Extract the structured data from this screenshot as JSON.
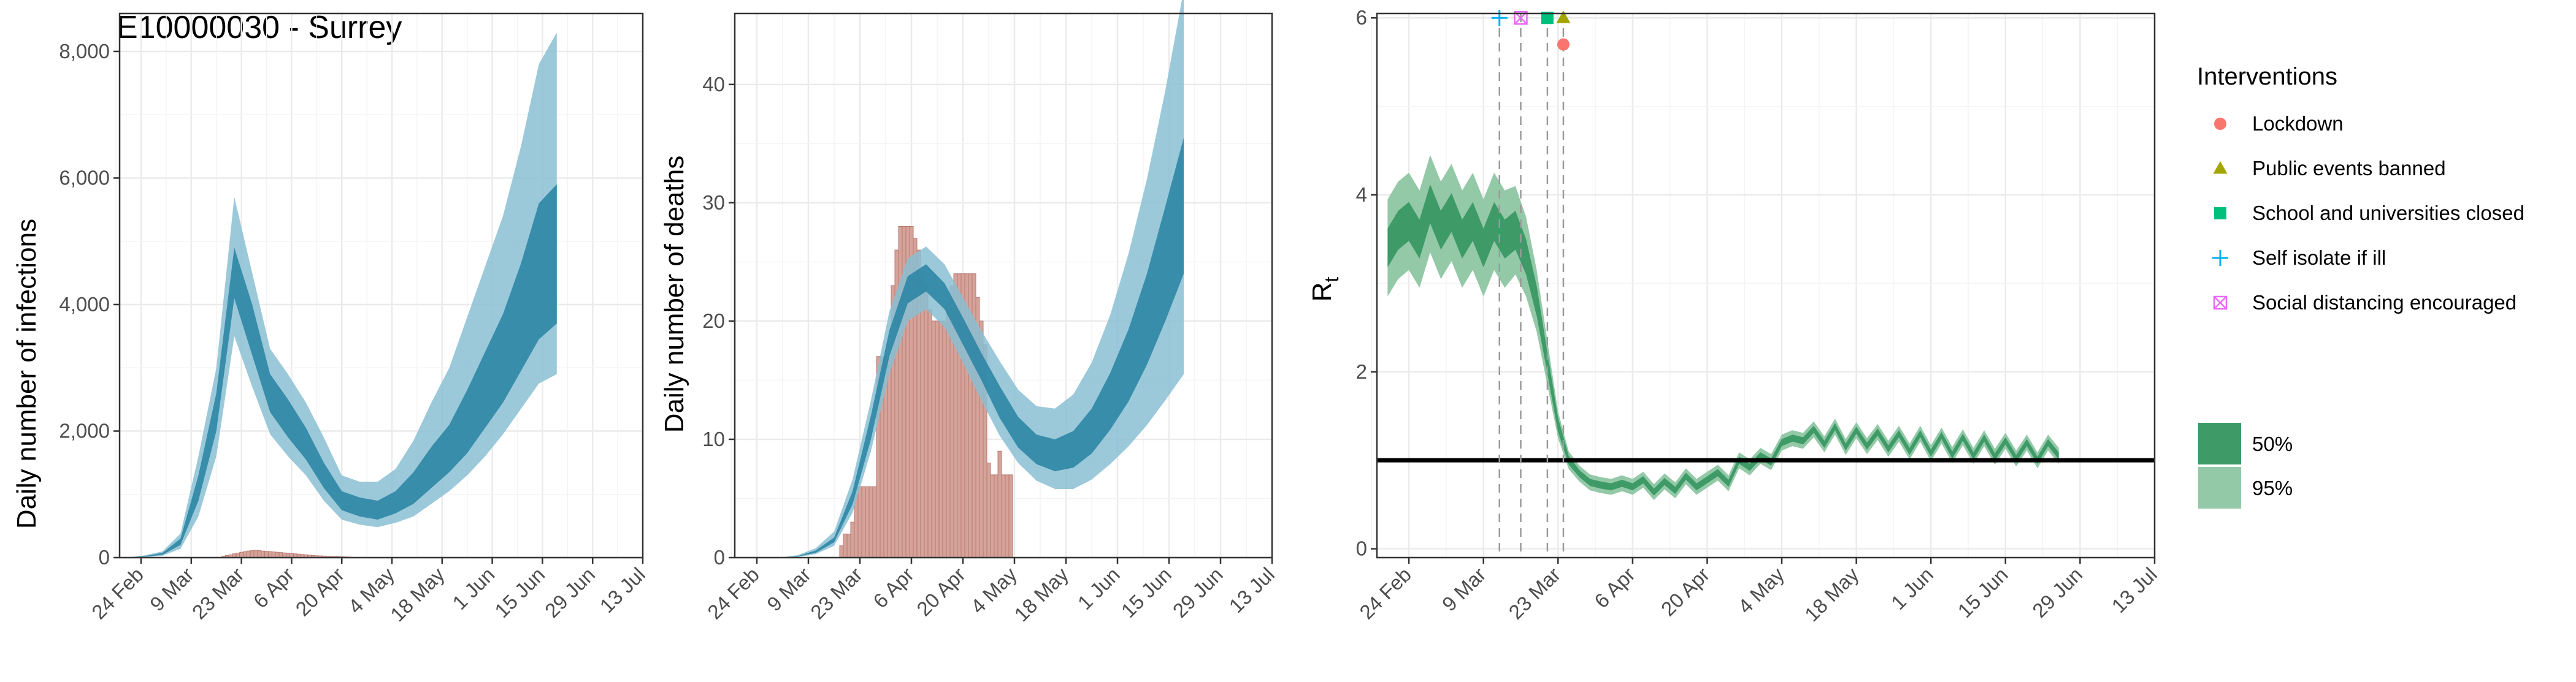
{
  "colors": {
    "infections_50": "#2e86a4",
    "infections_95": "#8ac0d3",
    "observed_bars": "#d5a39a",
    "observed_bar_edge": "#b77a70",
    "rt_50": "#3e9a67",
    "rt_95": "#94c9a8",
    "lockdown": "#f8766d",
    "public_events": "#a3a500",
    "school": "#00bf7d",
    "self_isolate": "#00b0f6",
    "social_distancing": "#e76bf3",
    "grid": "#ebebeb",
    "panel_border": "#333333"
  },
  "chart_data": [
    {
      "type": "area",
      "title": "E10000030 - Surrey",
      "xlabel": "",
      "ylabel": "Daily number of infections",
      "x_range": [
        "2020-02-18",
        "2020-07-13"
      ],
      "ylim": [
        0,
        8600
      ],
      "x_tick_labels": [
        "24 Feb",
        "9 Mar",
        "23 Mar",
        "6 Apr",
        "20 Apr",
        "4 May",
        "18 May",
        "1 Jun",
        "15 Jun",
        "29 Jun",
        "13 Jul"
      ],
      "y_ticks": [
        0,
        2000,
        4000,
        6000,
        8000
      ],
      "y_tick_labels": [
        "0",
        "2,000",
        "4,000",
        "6,000",
        "8,000"
      ],
      "bands": {
        "x_start": "2020-02-20",
        "step_days": 5,
        "median": [
          0,
          20,
          60,
          250,
          1100,
          2300,
          4500,
          3600,
          2600,
          2200,
          1800,
          1300,
          900,
          800,
          750,
          850,
          1100,
          1400,
          1700,
          2100,
          2600,
          3100,
          3800,
          4600,
          4800
        ],
        "ci50_low": [
          0,
          15,
          45,
          200,
          900,
          2000,
          4100,
          3200,
          2300,
          1900,
          1550,
          1100,
          750,
          650,
          600,
          700,
          850,
          1100,
          1350,
          1650,
          2050,
          2450,
          2950,
          3450,
          3700
        ],
        "ci50_high": [
          0,
          25,
          75,
          300,
          1300,
          2600,
          4900,
          4000,
          2900,
          2500,
          2050,
          1500,
          1050,
          950,
          900,
          1050,
          1350,
          1750,
          2100,
          2650,
          3250,
          3850,
          4650,
          5600,
          5900
        ],
        "ci95_low": [
          0,
          8,
          30,
          140,
          650,
          1600,
          3500,
          2700,
          1950,
          1600,
          1300,
          900,
          600,
          520,
          480,
          550,
          650,
          850,
          1050,
          1300,
          1600,
          1950,
          2350,
          2750,
          2900
        ],
        "ci95_high": [
          0,
          35,
          100,
          380,
          1600,
          3000,
          5700,
          4500,
          3300,
          2900,
          2450,
          1900,
          1300,
          1200,
          1200,
          1400,
          1850,
          2450,
          3000,
          3800,
          4600,
          5400,
          6500,
          7800,
          8300
        ]
      },
      "observed": {
        "x_start": "2020-03-18",
        "step_days": 1,
        "values": [
          20,
          35,
          45,
          60,
          70,
          85,
          95,
          105,
          110,
          115,
          110,
          105,
          100,
          95,
          90,
          85,
          80,
          75,
          70,
          65,
          60,
          55,
          50,
          45,
          40,
          35,
          30,
          28,
          25,
          22,
          20,
          18,
          16,
          14,
          12,
          10
        ]
      }
    },
    {
      "type": "area",
      "title": "",
      "xlabel": "",
      "ylabel": "Daily number of deaths",
      "x_range": [
        "2020-02-18",
        "2020-07-13"
      ],
      "ylim": [
        0,
        46
      ],
      "x_tick_labels": [
        "24 Feb",
        "9 Mar",
        "23 Mar",
        "6 Apr",
        "20 Apr",
        "4 May",
        "18 May",
        "1 Jun",
        "15 Jun",
        "29 Jun",
        "13 Jul"
      ],
      "y_ticks": [
        0,
        10,
        20,
        30,
        40
      ],
      "y_tick_labels": [
        "0",
        "10",
        "20",
        "30",
        "40"
      ],
      "bands": {
        "x_start": "2020-02-20",
        "step_days": 5,
        "median": [
          0,
          0,
          0,
          0.1,
          0.5,
          1.5,
          5,
          11,
          18,
          22.5,
          23.5,
          22,
          19,
          16,
          13,
          10.5,
          9,
          8.5,
          9,
          10.5,
          13,
          16,
          20,
          25,
          30
        ],
        "ci50_low": [
          0,
          0,
          0,
          0.08,
          0.4,
          1.3,
          4.5,
          10,
          17,
          21.5,
          22.5,
          21,
          18,
          15,
          11.8,
          9.3,
          7.9,
          7.3,
          7.6,
          8.8,
          10.8,
          13.2,
          16.3,
          20,
          24
        ],
        "ci50_high": [
          0,
          0,
          0,
          0.12,
          0.6,
          1.7,
          5.6,
          12,
          19.2,
          23.8,
          24.8,
          23.2,
          20.3,
          17.3,
          14.5,
          11.9,
          10.4,
          10,
          10.7,
          12.6,
          15.6,
          19.3,
          24,
          29.7,
          35.5
        ],
        "ci95_low": [
          0,
          0,
          0,
          0.05,
          0.3,
          1,
          3.8,
          9,
          15.5,
          20,
          21,
          19.5,
          16.5,
          13.3,
          10.3,
          8,
          6.5,
          5.8,
          5.8,
          6.6,
          7.9,
          9.4,
          11.2,
          13.3,
          15.5
        ],
        "ci95_high": [
          0,
          0,
          0,
          0.2,
          0.8,
          2.2,
          6.6,
          13.3,
          20.8,
          25.3,
          26.3,
          24.8,
          22,
          19.2,
          16.6,
          14.2,
          12.8,
          12.6,
          13.8,
          16.5,
          20.5,
          25.7,
          32,
          39.5,
          48
        ]
      },
      "observed": {
        "x_start": "2020-03-18",
        "step_days": 1,
        "values": [
          1,
          2,
          2,
          3,
          6,
          6,
          6,
          6,
          6,
          6,
          17,
          17,
          17,
          17,
          23,
          26,
          28,
          28,
          28,
          28,
          27,
          26,
          24,
          23,
          21,
          20,
          20,
          20,
          20,
          21,
          23,
          24,
          24,
          24,
          24,
          24,
          24,
          22,
          20,
          18,
          8,
          7,
          7,
          9,
          7,
          7,
          7
        ]
      }
    },
    {
      "type": "line",
      "title": "",
      "xlabel": "",
      "ylabel": "R",
      "ylabel_subscript": "t",
      "x_range": [
        "2020-02-18",
        "2020-07-13"
      ],
      "ylim": [
        -0.1,
        6.05
      ],
      "x_tick_labels": [
        "24 Feb",
        "9 Mar",
        "23 Mar",
        "6 Apr",
        "20 Apr",
        "4 May",
        "18 May",
        "1 Jun",
        "15 Jun",
        "29 Jun",
        "13 Jul"
      ],
      "y_ticks": [
        0,
        2,
        4,
        6
      ],
      "y_tick_labels": [
        "0",
        "2",
        "4",
        "6"
      ],
      "reference_line": 1,
      "rt": {
        "x_start": "2020-02-20",
        "step_days": 2,
        "values": [
          3.4,
          3.6,
          3.7,
          3.5,
          3.9,
          3.6,
          3.8,
          3.5,
          3.7,
          3.4,
          3.7,
          3.5,
          3.6,
          3.3,
          2.8,
          2.1,
          1.4,
          1.0,
          0.85,
          0.75,
          0.72,
          0.7,
          0.74,
          0.7,
          0.78,
          0.64,
          0.76,
          0.66,
          0.82,
          0.7,
          0.78,
          0.86,
          0.74,
          1.0,
          0.92,
          1.05,
          0.98,
          1.2,
          1.25,
          1.22,
          1.35,
          1.18,
          1.38,
          1.15,
          1.34,
          1.16,
          1.32,
          1.13,
          1.3,
          1.1,
          1.3,
          1.08,
          1.28,
          1.06,
          1.26,
          1.05,
          1.25,
          1.04,
          1.22,
          1.02,
          1.2,
          1.0,
          1.2,
          1.05
        ],
        "ci50_halfwidth": [
          0.22,
          0.22,
          0.22,
          0.22,
          0.22,
          0.22,
          0.22,
          0.22,
          0.22,
          0.22,
          0.22,
          0.22,
          0.22,
          0.2,
          0.17,
          0.12,
          0.08,
          0.05,
          0.04,
          0.04,
          0.04,
          0.04,
          0.04,
          0.04,
          0.04,
          0.04,
          0.04,
          0.04,
          0.04,
          0.04,
          0.04,
          0.04,
          0.04,
          0.04,
          0.04,
          0.04,
          0.04,
          0.04,
          0.04,
          0.04,
          0.04,
          0.04,
          0.04,
          0.04,
          0.04,
          0.04,
          0.04,
          0.04,
          0.04,
          0.04,
          0.04,
          0.04,
          0.04,
          0.04,
          0.04,
          0.04,
          0.04,
          0.04,
          0.04,
          0.04,
          0.04,
          0.04,
          0.04,
          0.04
        ],
        "ci95_halfwidth": [
          0.55,
          0.55,
          0.55,
          0.55,
          0.55,
          0.55,
          0.55,
          0.55,
          0.55,
          0.55,
          0.55,
          0.55,
          0.5,
          0.45,
          0.35,
          0.25,
          0.15,
          0.1,
          0.09,
          0.09,
          0.09,
          0.09,
          0.09,
          0.09,
          0.09,
          0.09,
          0.09,
          0.09,
          0.09,
          0.09,
          0.09,
          0.09,
          0.09,
          0.09,
          0.09,
          0.09,
          0.09,
          0.09,
          0.09,
          0.09,
          0.09,
          0.09,
          0.09,
          0.09,
          0.09,
          0.09,
          0.09,
          0.09,
          0.09,
          0.09,
          0.09,
          0.09,
          0.09,
          0.09,
          0.09,
          0.09,
          0.09,
          0.09,
          0.09,
          0.09,
          0.09,
          0.09,
          0.09,
          0.09
        ]
      },
      "interventions": [
        {
          "name": "Self isolate if ill",
          "date": "2020-03-12",
          "marker": "plus",
          "y": 6
        },
        {
          "name": "Social distancing encouraged",
          "date": "2020-03-16",
          "marker": "boxx",
          "y": 6
        },
        {
          "name": "School and universities closed",
          "date": "2020-03-21",
          "marker": "square",
          "y": 6
        },
        {
          "name": "Public events banned",
          "date": "2020-03-24",
          "marker": "triangle",
          "y": 6
        },
        {
          "name": "Lockdown",
          "date": "2020-03-24",
          "marker": "circle",
          "y": 5.7
        }
      ]
    }
  ],
  "legend": {
    "interventions_title": "Interventions",
    "items": [
      {
        "label": "Lockdown",
        "marker": "circle",
        "color_key": "lockdown"
      },
      {
        "label": "Public events banned",
        "marker": "triangle",
        "color_key": "public_events"
      },
      {
        "label": "School and universities closed",
        "marker": "square",
        "color_key": "school"
      },
      {
        "label": "Self isolate if ill",
        "marker": "plus",
        "color_key": "self_isolate"
      },
      {
        "label": "Social distancing encouraged",
        "marker": "boxx",
        "color_key": "social_distancing"
      }
    ],
    "ci_items": [
      {
        "label": "50%",
        "color_key": "rt_50"
      },
      {
        "label": "95%",
        "color_key": "rt_95"
      }
    ]
  }
}
